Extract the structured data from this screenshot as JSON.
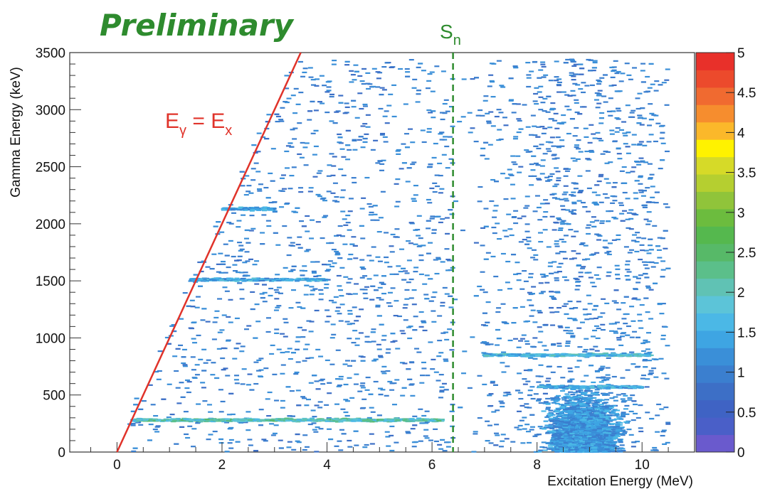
{
  "chart_data": {
    "type": "heatmap",
    "title": "Preliminary",
    "xlabel": "Excitation Energy (MeV)",
    "ylabel": "Gamma Energy (keV)",
    "xlim": [
      -0.9,
      11.0
    ],
    "ylim": [
      0,
      3500
    ],
    "x_ticks": [
      0,
      2,
      4,
      6,
      8,
      10
    ],
    "y_ticks": [
      0,
      500,
      1000,
      1500,
      2000,
      2500,
      3000,
      3500
    ],
    "colorbar": {
      "min": 0,
      "max": 5,
      "ticks": [
        "0",
        "0.5",
        "1",
        "1.5",
        "2",
        "2.5",
        "3",
        "3.5",
        "4",
        "4.5",
        "5"
      ],
      "colors": [
        "#6a5acd",
        "#4a5fc8",
        "#3f63c4",
        "#3d6fc6",
        "#3b7fcf",
        "#3a8fd8",
        "#3ea5e3",
        "#4bb8e6",
        "#5cc4d8",
        "#60c2b4",
        "#5bbf8a",
        "#57b968",
        "#55b84e",
        "#6cbc3e",
        "#90c43a",
        "#b5cf30",
        "#d6da28",
        "#fff200",
        "#fbb82a",
        "#f68d2e",
        "#f06a30",
        "#ec4a2c",
        "#e8302a"
      ]
    },
    "lines": [
      {
        "label": "E",
        "sub": "γ",
        "label2": " = E",
        "sub2": "x",
        "color": "#e0332a",
        "from": [
          0,
          0
        ],
        "to": [
          3.5,
          3500
        ],
        "style": "solid"
      },
      {
        "label": "S",
        "sub": "n",
        "color": "#2e8b2e",
        "x": 6.4,
        "style": "dashed"
      }
    ],
    "bands": [
      {
        "y": 280,
        "x_range": [
          0.3,
          6.2
        ],
        "intensity": 1.6
      },
      {
        "y": 850,
        "x_range": [
          7.0,
          10.2
        ],
        "intensity": 1.2
      },
      {
        "y": 1510,
        "x_range": [
          1.4,
          4.0
        ],
        "intensity": 1.0
      },
      {
        "y": 2130,
        "x_range": [
          2.0,
          3.0
        ],
        "intensity": 0.9
      },
      {
        "y": 570,
        "x_range": [
          8.0,
          10.0
        ],
        "intensity": 1.0
      }
    ]
  }
}
